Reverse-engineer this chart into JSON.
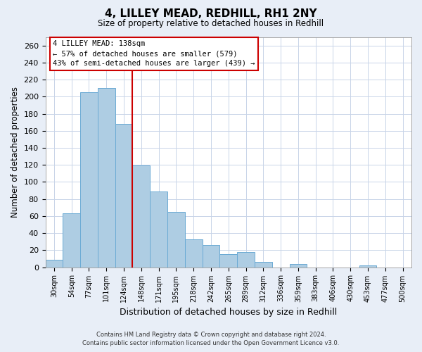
{
  "title": "4, LILLEY MEAD, REDHILL, RH1 2NY",
  "subtitle": "Size of property relative to detached houses in Redhill",
  "xlabel": "Distribution of detached houses by size in Redhill",
  "ylabel": "Number of detached properties",
  "bar_labels": [
    "30sqm",
    "54sqm",
    "77sqm",
    "101sqm",
    "124sqm",
    "148sqm",
    "171sqm",
    "195sqm",
    "218sqm",
    "242sqm",
    "265sqm",
    "289sqm",
    "312sqm",
    "336sqm",
    "359sqm",
    "383sqm",
    "406sqm",
    "430sqm",
    "453sqm",
    "477sqm",
    "500sqm"
  ],
  "bar_values": [
    9,
    63,
    205,
    210,
    168,
    119,
    89,
    65,
    33,
    26,
    15,
    18,
    6,
    0,
    4,
    0,
    0,
    0,
    2,
    0,
    0
  ],
  "bar_color": "#aecde3",
  "bar_edge_color": "#6aaad4",
  "ylim": [
    0,
    270
  ],
  "yticks": [
    0,
    20,
    40,
    60,
    80,
    100,
    120,
    140,
    160,
    180,
    200,
    220,
    240,
    260
  ],
  "vline_x": 4.5,
  "vline_color": "#cc0000",
  "annotation_title": "4 LILLEY MEAD: 138sqm",
  "annotation_line1": "← 57% of detached houses are smaller (579)",
  "annotation_line2": "43% of semi-detached houses are larger (439) →",
  "footer_line1": "Contains HM Land Registry data © Crown copyright and database right 2024.",
  "footer_line2": "Contains public sector information licensed under the Open Government Licence v3.0.",
  "background_color": "#e8eef7",
  "plot_bg_color": "#ffffff",
  "grid_color": "#c8d4e8"
}
